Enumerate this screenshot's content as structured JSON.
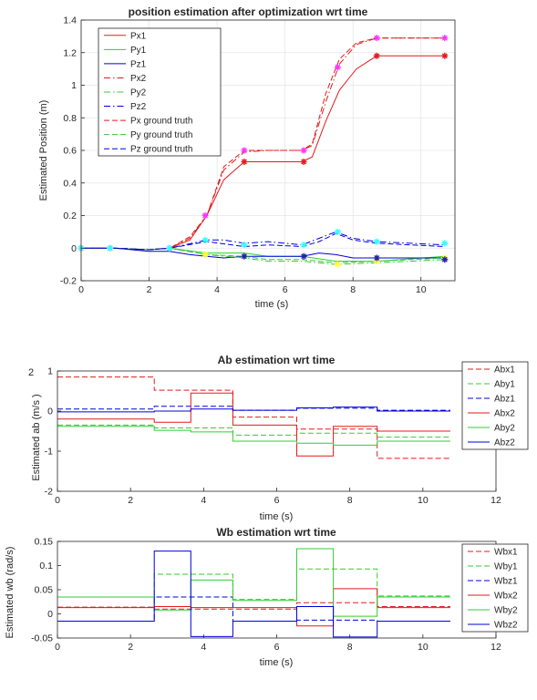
{
  "chart_data": [
    {
      "id": "pos",
      "type": "line",
      "title": "position estimation after optimization wrt time",
      "xlabel": "time (s)",
      "ylabel": "Estimated Position (m)",
      "xlim": [
        0,
        11
      ],
      "ylim": [
        -0.2,
        1.4
      ],
      "xticks": [
        0,
        2,
        4,
        6,
        8,
        10
      ],
      "yticks": [
        -0.2,
        0,
        0.2,
        0.4,
        0.6,
        0.8,
        1,
        1.2,
        1.4
      ],
      "ytick_labels": [
        "-0.2",
        "0",
        "0.2",
        "0.4",
        "0.6",
        "0.8",
        "1",
        "1.2",
        "1.4"
      ],
      "legend": "top-left",
      "grid": true,
      "series": [
        {
          "name": "Px1",
          "color": "#e41a1c",
          "dash": "solid",
          "x": [
            0,
            1,
            2,
            2.6,
            3.2,
            3.7,
            4.2,
            4.8,
            5.5,
            6.5,
            6.8,
            7.2,
            7.6,
            8.1,
            8.7,
            9.5,
            10.7
          ],
          "y": [
            0,
            0,
            -0.01,
            0,
            0.05,
            0.2,
            0.42,
            0.53,
            0.53,
            0.53,
            0.56,
            0.78,
            0.97,
            1.1,
            1.18,
            1.18,
            1.18
          ]
        },
        {
          "name": "Py1",
          "color": "#33cc33",
          "dash": "solid",
          "x": [
            0,
            1,
            2,
            2.6,
            3.7,
            4.8,
            5.5,
            6.5,
            7.5,
            8.7,
            10.7
          ],
          "y": [
            0,
            0,
            -0.01,
            0,
            -0.03,
            -0.03,
            -0.05,
            -0.05,
            -0.08,
            -0.08,
            -0.05
          ]
        },
        {
          "name": "Pz1",
          "color": "#0000dd",
          "dash": "solid",
          "x": [
            0,
            1,
            2,
            2.6,
            3.2,
            3.7,
            4.2,
            4.8,
            5.5,
            6.5,
            7.0,
            7.5,
            8.0,
            8.7,
            10.7
          ],
          "y": [
            0,
            0,
            -0.02,
            -0.02,
            -0.04,
            -0.05,
            -0.06,
            -0.05,
            -0.05,
            -0.05,
            -0.03,
            -0.04,
            -0.06,
            -0.06,
            -0.06
          ]
        },
        {
          "name": "Px2",
          "color": "#e41a1c",
          "dash": "dashdot",
          "x": [
            0,
            1,
            2,
            2.6,
            3.2,
            3.7,
            4.2,
            4.8,
            5.5,
            6.5,
            6.8,
            7.2,
            7.6,
            8.1,
            8.7,
            9.5,
            10.7
          ],
          "y": [
            0,
            0,
            -0.01,
            0,
            0.06,
            0.2,
            0.48,
            0.59,
            0.6,
            0.6,
            0.63,
            0.9,
            1.13,
            1.25,
            1.29,
            1.29,
            1.29
          ]
        },
        {
          "name": "Py2",
          "color": "#33cc33",
          "dash": "dashdot",
          "x": [
            0,
            1,
            2,
            2.6,
            3.7,
            4.8,
            5.5,
            6.5,
            7.5,
            8.7,
            10.7
          ],
          "y": [
            0,
            0,
            -0.01,
            0,
            -0.04,
            -0.06,
            -0.08,
            -0.08,
            -0.1,
            -0.09,
            -0.07
          ]
        },
        {
          "name": "Pz2",
          "color": "#0000dd",
          "dash": "dashdot",
          "x": [
            0,
            1,
            2,
            2.6,
            3.7,
            4.2,
            4.8,
            5.5,
            6.5,
            7.0,
            7.5,
            8.0,
            8.7,
            10.7
          ],
          "y": [
            0,
            0,
            -0.01,
            0,
            0.05,
            0.05,
            0.03,
            0.04,
            0.02,
            0.06,
            0.1,
            0.06,
            0.04,
            0.02
          ]
        },
        {
          "name": "Px ground truth",
          "color": "#e41a1c",
          "dash": "dash",
          "x": [
            0,
            1,
            2,
            2.6,
            3.2,
            3.7,
            4.2,
            4.8,
            5.5,
            6.5,
            6.8,
            7.2,
            7.6,
            8.1,
            8.7,
            9.5,
            10.7
          ],
          "y": [
            0,
            0,
            -0.01,
            0,
            0.07,
            0.2,
            0.5,
            0.6,
            0.6,
            0.6,
            0.64,
            0.95,
            1.16,
            1.26,
            1.29,
            1.29,
            1.29
          ]
        },
        {
          "name": "Py ground truth",
          "color": "#33cc33",
          "dash": "dash",
          "x": [
            0,
            1,
            2,
            2.6,
            3.7,
            4.8,
            5.5,
            6.5,
            7.5,
            8.7,
            10.7
          ],
          "y": [
            0,
            0,
            -0.01,
            0,
            -0.04,
            -0.05,
            -0.07,
            -0.07,
            -0.09,
            -0.08,
            -0.06
          ]
        },
        {
          "name": "Pz ground truth",
          "color": "#0000dd",
          "dash": "dash",
          "x": [
            0,
            1,
            2,
            2.6,
            3.7,
            4.8,
            5.5,
            6.5,
            7.0,
            7.5,
            8.0,
            8.7,
            10.7
          ],
          "y": [
            0,
            0,
            -0.01,
            0,
            0.04,
            0.01,
            0.02,
            0.01,
            0.04,
            0.09,
            0.05,
            0.03,
            0.01
          ]
        }
      ],
      "markers": [
        {
          "color": "#ff33ff",
          "points": [
            [
              0,
              0
            ],
            [
              0.85,
              0
            ],
            [
              2.6,
              0
            ],
            [
              3.65,
              0.2
            ],
            [
              4.8,
              0.6
            ],
            [
              6.55,
              0.6
            ],
            [
              7.55,
              1.11
            ],
            [
              8.7,
              1.29
            ],
            [
              10.7,
              1.29
            ]
          ]
        },
        {
          "color": "#e41a1c",
          "points": [
            [
              4.8,
              0.53
            ],
            [
              6.55,
              0.53
            ],
            [
              8.7,
              1.18
            ],
            [
              10.7,
              1.18
            ]
          ]
        },
        {
          "color": "#33ffff",
          "points": [
            [
              0,
              0
            ],
            [
              0.85,
              0
            ],
            [
              2.6,
              0
            ],
            [
              3.65,
              0.05
            ],
            [
              4.8,
              0.02
            ],
            [
              6.55,
              0.02
            ],
            [
              7.55,
              0.1
            ],
            [
              8.7,
              0.04
            ],
            [
              10.7,
              0.03
            ]
          ]
        },
        {
          "color": "#ffff33",
          "points": [
            [
              3.65,
              -0.04
            ],
            [
              4.8,
              -0.05
            ],
            [
              7.55,
              -0.1
            ],
            [
              8.7,
              -0.08
            ],
            [
              10.7,
              -0.06
            ]
          ]
        },
        {
          "color": "#2222aa",
          "points": [
            [
              4.8,
              -0.05
            ],
            [
              6.55,
              -0.05
            ],
            [
              8.7,
              -0.06
            ],
            [
              10.7,
              -0.07
            ]
          ]
        }
      ]
    },
    {
      "id": "ab",
      "type": "line",
      "title": "Ab estimation wrt time",
      "xlabel": "time (s)",
      "ylabel": "Estimated ab (m/s  )",
      "ylabel_superscript": "2",
      "xlim": [
        0,
        12
      ],
      "ylim": [
        -2,
        1
      ],
      "xticks": [
        0,
        2,
        4,
        6,
        8,
        10,
        12
      ],
      "yticks": [
        -2,
        -1,
        0,
        1
      ],
      "ytick_labels": [
        "-2",
        "-1",
        "0",
        "1"
      ],
      "legend": "right",
      "grid": false,
      "series": [
        {
          "name": "Abx1",
          "color": "#e41a1c",
          "dash": "dash",
          "x": [
            0,
            2.65,
            2.65,
            4.8,
            4.8,
            6.55,
            6.55,
            8.75,
            8.75,
            10.75
          ],
          "y": [
            0.85,
            0.85,
            0.52,
            0.52,
            -0.15,
            -0.15,
            -0.45,
            -0.45,
            -1.18,
            -1.18
          ]
        },
        {
          "name": "Aby1",
          "color": "#33cc33",
          "dash": "dash",
          "x": [
            0,
            2.65,
            2.65,
            4.8,
            4.8,
            6.55,
            6.55,
            8.75,
            8.75,
            10.75
          ],
          "y": [
            -0.35,
            -0.35,
            -0.42,
            -0.42,
            -0.6,
            -0.6,
            -0.55,
            -0.55,
            -0.65,
            -0.65
          ]
        },
        {
          "name": "Abz1",
          "color": "#0000dd",
          "dash": "dash",
          "x": [
            0,
            2.65,
            2.65,
            4.8,
            4.8,
            6.55,
            6.55,
            8.75,
            8.75,
            10.75
          ],
          "y": [
            0.05,
            0.05,
            0.12,
            0.12,
            0.02,
            0.02,
            0.07,
            0.07,
            0.02,
            0.02
          ]
        },
        {
          "name": "Abx2",
          "color": "#e41a1c",
          "dash": "solid",
          "x": [
            0,
            2.65,
            2.65,
            3.65,
            3.65,
            4.8,
            4.8,
            6.55,
            6.55,
            7.55,
            7.55,
            8.75,
            8.75,
            10.75
          ],
          "y": [
            -0.2,
            -0.2,
            -0.28,
            -0.28,
            0.45,
            0.45,
            -0.35,
            -0.35,
            -1.12,
            -1.12,
            -0.38,
            -0.38,
            -0.5,
            -0.5
          ]
        },
        {
          "name": "Aby2",
          "color": "#33cc33",
          "dash": "solid",
          "x": [
            0,
            2.65,
            2.65,
            3.65,
            3.65,
            4.8,
            4.8,
            6.55,
            6.55,
            7.55,
            7.55,
            8.75,
            8.75,
            10.75
          ],
          "y": [
            -0.38,
            -0.38,
            -0.48,
            -0.48,
            -0.52,
            -0.52,
            -0.75,
            -0.75,
            -0.8,
            -0.8,
            -0.85,
            -0.85,
            -0.75,
            -0.75
          ]
        },
        {
          "name": "Abz2",
          "color": "#0000dd",
          "dash": "solid",
          "x": [
            0,
            2.65,
            2.65,
            3.65,
            3.65,
            4.8,
            4.8,
            6.55,
            6.55,
            7.55,
            7.55,
            8.75,
            8.75,
            10.75
          ],
          "y": [
            -0.02,
            -0.02,
            0.0,
            0.0,
            0.05,
            0.05,
            0.02,
            0.02,
            0.08,
            0.08,
            0.1,
            0.1,
            0.0,
            0.0
          ]
        }
      ]
    },
    {
      "id": "wb",
      "type": "line",
      "title": "Wb estimation wrt time",
      "xlabel": "time (s)",
      "ylabel": "Estimated wb (rad/s)",
      "xlim": [
        0,
        12
      ],
      "ylim": [
        -0.05,
        0.15
      ],
      "xticks": [
        0,
        2,
        4,
        6,
        8,
        10,
        12
      ],
      "yticks": [
        -0.05,
        0,
        0.05,
        0.1,
        0.15
      ],
      "ytick_labels": [
        "-0.05",
        "0",
        "0.05",
        "0.1",
        "0.15"
      ],
      "legend": "right",
      "grid": false,
      "series": [
        {
          "name": "Wbx1",
          "color": "#e41a1c",
          "dash": "dash",
          "x": [
            0,
            2.65,
            2.65,
            4.8,
            4.8,
            6.55,
            6.55,
            8.75,
            8.75,
            10.75
          ],
          "y": [
            0.014,
            0.014,
            0.01,
            0.01,
            0.01,
            0.01,
            0.023,
            0.023,
            0.015,
            0.015
          ]
        },
        {
          "name": "Wby1",
          "color": "#33cc33",
          "dash": "dash",
          "x": [
            0,
            2.65,
            2.65,
            4.8,
            4.8,
            6.55,
            6.55,
            8.75,
            8.75,
            10.75
          ],
          "y": [
            0.035,
            0.035,
            0.082,
            0.082,
            0.03,
            0.03,
            0.093,
            0.093,
            0.037,
            0.037
          ]
        },
        {
          "name": "Wbz1",
          "color": "#0000dd",
          "dash": "dash",
          "x": [
            0,
            2.65,
            2.65,
            4.8,
            4.8,
            6.55,
            6.55,
            8.75,
            8.75,
            10.75
          ],
          "y": [
            -0.015,
            -0.015,
            0.035,
            0.035,
            -0.015,
            -0.015,
            -0.013,
            -0.013,
            -0.015,
            -0.015
          ]
        },
        {
          "name": "Wbx2",
          "color": "#e41a1c",
          "dash": "solid",
          "x": [
            0,
            2.65,
            2.65,
            3.65,
            3.65,
            4.8,
            4.8,
            6.55,
            6.55,
            7.55,
            7.55,
            8.75,
            8.75,
            10.75
          ],
          "y": [
            0.013,
            0.013,
            0.015,
            0.015,
            0.013,
            0.013,
            0.013,
            0.013,
            -0.025,
            -0.025,
            0.052,
            0.052,
            0.013,
            0.013
          ]
        },
        {
          "name": "Wby2",
          "color": "#33cc33",
          "dash": "solid",
          "x": [
            0,
            2.65,
            2.65,
            3.65,
            3.65,
            4.8,
            4.8,
            6.55,
            6.55,
            7.55,
            7.55,
            8.75,
            8.75,
            10.75
          ],
          "y": [
            0.035,
            0.035,
            0.008,
            0.008,
            0.07,
            0.07,
            0.028,
            0.028,
            0.135,
            0.135,
            -0.005,
            -0.005,
            0.035,
            0.035
          ]
        },
        {
          "name": "Wbz2",
          "color": "#0000dd",
          "dash": "solid",
          "x": [
            0,
            2.65,
            2.65,
            3.65,
            3.65,
            4.8,
            4.8,
            6.55,
            6.55,
            7.55,
            7.55,
            8.75,
            8.75,
            10.75
          ],
          "y": [
            -0.015,
            -0.015,
            0.13,
            0.13,
            -0.047,
            -0.047,
            -0.015,
            -0.015,
            0.015,
            0.015,
            -0.048,
            -0.048,
            -0.015,
            -0.015
          ]
        }
      ]
    }
  ]
}
